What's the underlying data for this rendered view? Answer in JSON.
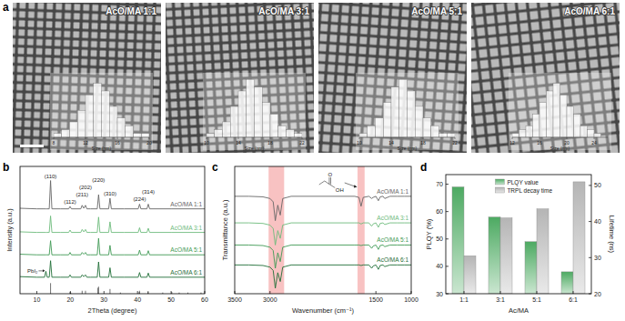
{
  "panels": [
    "a",
    "b",
    "c",
    "d"
  ],
  "chart_data": [
    {
      "type": "histogram",
      "title": "AcO/MA 1:1",
      "xlabel": "Size (nm)",
      "bins": [
        8,
        9,
        10,
        11,
        12,
        13,
        14,
        15,
        16,
        17,
        18,
        19,
        20
      ],
      "counts": [
        1,
        2,
        4,
        7,
        11,
        14,
        12,
        8,
        5,
        3,
        1,
        1
      ],
      "xlim": [
        8,
        20
      ],
      "xticks": [
        8,
        12,
        16,
        20
      ],
      "ylim": [
        0,
        16
      ],
      "tick_labels": "x",
      "color": "#ffffff"
    },
    {
      "type": "histogram",
      "title": "AcO/MA 3:1",
      "xlabel": "Size (nm)",
      "bins": [
        10,
        11,
        12,
        13,
        14,
        15,
        16,
        17,
        18,
        19,
        20,
        21,
        22
      ],
      "counts": [
        1,
        2,
        4,
        8,
        12,
        15,
        13,
        9,
        6,
        3,
        2,
        1
      ],
      "xlim": [
        10,
        22
      ],
      "xticks": [
        10,
        14,
        18,
        22
      ],
      "ylim": [
        0,
        16
      ],
      "tick_labels": "x",
      "color": "#ffffff"
    },
    {
      "type": "histogram",
      "title": "AcO/MA 5:1",
      "xlabel": "Size (nm)",
      "bins": [
        10,
        11,
        12,
        13,
        14,
        15,
        16,
        17,
        18,
        19,
        20,
        21,
        22
      ],
      "counts": [
        1,
        3,
        5,
        9,
        13,
        15,
        12,
        8,
        5,
        3,
        1,
        1
      ],
      "xlim": [
        10,
        22
      ],
      "xticks": [
        10,
        14,
        18,
        22
      ],
      "ylim": [
        0,
        16
      ],
      "tick_labels": "x",
      "color": "#ffffff"
    },
    {
      "type": "histogram",
      "title": "AcO/MA 6:1",
      "xlabel": "Size (nm)",
      "bins": [
        12,
        13,
        14,
        15,
        16,
        17,
        18,
        19,
        20,
        21,
        22,
        23,
        24,
        25
      ],
      "counts": [
        1,
        2,
        3,
        6,
        9,
        12,
        14,
        11,
        8,
        6,
        3,
        2,
        1
      ],
      "xlim": [
        12,
        26
      ],
      "xticks": [
        12,
        16,
        20,
        24
      ],
      "ylim": [
        0,
        16
      ],
      "tick_labels": "x",
      "color": "#ffffff"
    },
    {
      "type": "line",
      "xlabel": "2Theta (degree)",
      "ylabel": "Intensity (a.u.)",
      "x": [
        5,
        10,
        12.3,
        12.7,
        13.1,
        13.7,
        14.1,
        14.5,
        17,
        19.5,
        19.9,
        20.3,
        23.1,
        23.5,
        24.0,
        24.5,
        24.9,
        26,
        28.0,
        28.4,
        28.8,
        31.4,
        31.8,
        32.2,
        36,
        40.2,
        40.6,
        41.0,
        42.8,
        43.2,
        43.6,
        50,
        60
      ],
      "series": [
        {
          "name": "AcO/MA 1:1",
          "color": "#666666",
          "values": [
            72.5,
            72,
            72,
            72,
            72,
            72,
            96,
            72,
            72,
            72,
            74,
            72,
            72,
            75,
            72.5,
            75,
            72,
            72,
            72,
            84,
            72,
            72,
            81,
            72,
            72,
            72,
            76,
            72,
            72,
            76,
            72,
            72,
            72
          ]
        },
        {
          "name": "AcO/MA 3:1",
          "color": "#6dbb7c",
          "values": [
            52.5,
            52,
            52,
            52,
            52,
            52,
            66,
            52,
            52,
            52,
            54,
            52,
            52,
            54.5,
            52.5,
            54.5,
            52,
            52,
            52,
            65,
            52,
            52,
            61,
            52,
            52,
            52,
            56,
            52,
            52,
            55.5,
            52,
            52,
            52
          ]
        },
        {
          "name": "AcO/MA 5:1",
          "color": "#3f9a55",
          "values": [
            33.5,
            33,
            33,
            33,
            33,
            33,
            45,
            33,
            33,
            33,
            35,
            33,
            33,
            35,
            33.5,
            35,
            33,
            33,
            33,
            47,
            33,
            33,
            41,
            33,
            33,
            33,
            37,
            33,
            33,
            36.5,
            33,
            33,
            33
          ]
        },
        {
          "name": "AcO/MA 6:1",
          "color": "#1f6e37",
          "values": [
            14.5,
            14,
            14,
            19,
            14,
            14,
            28,
            14,
            14,
            14,
            16,
            14,
            14,
            16,
            14.5,
            16,
            14,
            14,
            14,
            27,
            14,
            14,
            22,
            14,
            14,
            14,
            18,
            14,
            14,
            17.5,
            14,
            14,
            14
          ]
        }
      ],
      "xlim": [
        5,
        60
      ],
      "xticks": [
        10,
        20,
        30,
        40,
        50,
        60
      ],
      "ylim": [
        0,
        108
      ],
      "tick_labels": "x",
      "annotations": [
        {
          "text": "(110)",
          "x": 14.1
        },
        {
          "text": "(112)",
          "x": 19.9
        },
        {
          "text": "(211)",
          "x": 23.5
        },
        {
          "text": "(202)",
          "x": 24.5
        },
        {
          "text": "(220)",
          "x": 28.4
        },
        {
          "text": "(310)",
          "x": 31.8
        },
        {
          "text": "(224)",
          "x": 40.6
        },
        {
          "text": "(314)",
          "x": 43.2
        }
      ],
      "arrow_annotations": [
        {
          "text": "PbI₂",
          "x": 12.7
        }
      ],
      "reference": {
        "x": [
          14.1,
          19.9,
          20.1,
          23.5,
          24.5,
          28.2,
          28.4,
          31.8,
          34.9,
          40.5,
          40.6,
          43.1,
          43.2,
          47.5,
          50.2,
          52.4,
          55.0,
          58.9
        ],
        "values": [
          9,
          1.5,
          1,
          2.5,
          2.5,
          5,
          6,
          4,
          1,
          1.5,
          2.5,
          2,
          2,
          1,
          1.5,
          1,
          1,
          1
        ],
        "color": "#333333"
      }
    },
    {
      "type": "line",
      "xlabel": "Wavenumber (cm⁻¹)",
      "ylabel": "Transmittance (a.u.)",
      "x": [
        3500,
        3300,
        3100,
        3000,
        2955,
        2925,
        2890,
        2855,
        2820,
        2700,
        1800,
        1740,
        1710,
        1680,
        1600,
        1560,
        1540,
        1500,
        1465,
        1440,
        1400,
        1375,
        1300,
        1200,
        1100,
        1000
      ],
      "series": [
        {
          "name": "AcO/MA 1:1",
          "color": "#666666",
          "values": [
            88,
            88,
            87.5,
            86,
            83,
            66,
            80,
            71,
            86,
            88,
            88,
            87,
            79,
            87,
            88,
            86,
            87,
            88,
            84,
            87.5,
            88,
            86,
            88,
            88,
            88,
            88
          ]
        },
        {
          "name": "AcO/MA 3:1",
          "color": "#6dbb7c",
          "values": [
            64,
            64,
            63.5,
            62,
            59,
            44,
            57,
            50,
            62,
            64,
            64,
            64,
            63,
            64,
            64,
            61,
            63,
            64,
            60,
            63.5,
            64,
            62.5,
            64,
            64,
            64,
            64
          ]
        },
        {
          "name": "AcO/MA 5:1",
          "color": "#3f9a55",
          "values": [
            44,
            44,
            43.5,
            42,
            39,
            23,
            37,
            29,
            42,
            44,
            44,
            44,
            43.5,
            44,
            44,
            41,
            43,
            44,
            40,
            43.5,
            44,
            42.5,
            44,
            44,
            44,
            44
          ]
        },
        {
          "name": "AcO/MA 6:1",
          "color": "#1f6e37",
          "values": [
            26,
            26,
            25.5,
            24,
            21,
            5,
            19,
            11,
            24,
            26,
            26,
            26,
            25.5,
            26,
            26,
            23,
            25,
            26,
            22,
            25.5,
            26,
            24.5,
            26,
            26,
            26,
            26
          ]
        }
      ],
      "xlim": [
        3500,
        1000
      ],
      "xticks": [
        3500,
        3000,
        1500,
        1000
      ],
      "ylim": [
        0,
        115
      ],
      "tick_labels": "x",
      "highlight_ranges": [
        [
          3020,
          2800
        ],
        [
          1760,
          1660
        ]
      ],
      "structure_labels": [
        "O",
        "OH"
      ]
    },
    {
      "type": "bar",
      "xlabel": "Ac/MA",
      "ylabel": "PLQY (%)",
      "y2label": "Lifetime (ns)",
      "categories": [
        "1:1",
        "3:1",
        "5:1",
        "6:1"
      ],
      "series": [
        {
          "name": "PLQY value",
          "color": "#4daa62",
          "values": [
            69,
            58,
            49,
            38
          ]
        },
        {
          "name": "TRPL decay time",
          "color": "#b5b5b5",
          "axis": "y2",
          "values": [
            30.5,
            41,
            43.5,
            51
          ]
        }
      ],
      "ylim": [
        30,
        73.5
      ],
      "yticks": [
        30,
        40,
        50,
        60,
        70
      ],
      "y2lim": [
        20,
        53
      ],
      "y2ticks": [
        20,
        30,
        40,
        50
      ],
      "legend": "top"
    }
  ]
}
